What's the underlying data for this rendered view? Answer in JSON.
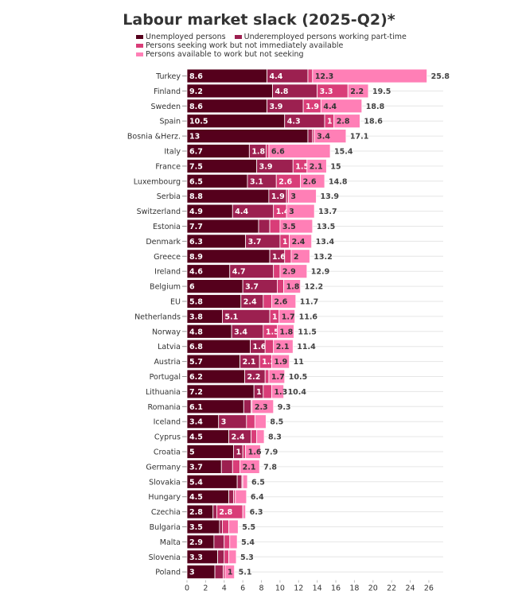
{
  "chart_data": {
    "type": "bar",
    "orientation": "horizontal",
    "stacked": true,
    "title": "Labour market slack (2025-Q2)*",
    "xlim": [
      0,
      27
    ],
    "xticks": [
      0,
      2,
      4,
      6,
      8,
      10,
      12,
      14,
      16,
      18,
      20,
      22,
      24,
      26
    ],
    "grid": true,
    "legend_position": "top-left",
    "categories": [
      "Turkey",
      "Finland",
      "Sweden",
      "Spain",
      "Bosnia &Herz.",
      "Italy",
      "France",
      "Luxembourg",
      "Serbia",
      "Switzerland",
      "Estonia",
      "Denmark",
      "Greece",
      "Ireland",
      "Belgium",
      "EU",
      "Netherlands",
      "Norway",
      "Latvia",
      "Austria",
      "Portugal",
      "Lithuania",
      "Romania",
      "Iceland",
      "Cyprus",
      "Croatia",
      "Germany",
      "Slovakia",
      "Hungary",
      "Czechia",
      "Bulgaria",
      "Malta",
      "Slovenia",
      "Poland"
    ],
    "totals": [
      "25.8",
      "19.5",
      "18.8",
      "18.6",
      "17.1",
      "15.4",
      "15",
      "14.8",
      "13.9",
      "13.7",
      "13.5",
      "13.4",
      "13.2",
      "12.9",
      "12.2",
      "11.7",
      "11.6",
      "11.5",
      "11.4",
      "11",
      "10.5",
      "10.4",
      "9.3",
      "8.5",
      "8.3",
      "7.9",
      "7.8",
      "6.5",
      "6.4",
      "6.3",
      "5.5",
      "5.4",
      "5.3",
      "5.1"
    ],
    "series": [
      {
        "name": "Unemployed persons",
        "color": "#55001c",
        "values": [
          8.6,
          9.2,
          8.6,
          10.5,
          13,
          6.7,
          7.5,
          6.5,
          8.8,
          4.9,
          7.7,
          6.3,
          8.9,
          4.6,
          6,
          5.8,
          3.8,
          4.8,
          6.8,
          5.7,
          6.2,
          7.2,
          6.1,
          3.4,
          4.5,
          5,
          3.7,
          5.4,
          4.5,
          2.8,
          3.5,
          2.9,
          3.3,
          3
        ],
        "labels": [
          "8.6",
          "9.2",
          "8.6",
          "10.5",
          "13",
          "6.7",
          "7.5",
          "6.5",
          "8.8",
          "4.9",
          "7.7",
          "6.3",
          "8.9",
          "4.6",
          "6",
          "5.8",
          "3.8",
          "4.8",
          "6.8",
          "5.7",
          "6.2",
          "7.2",
          "6.1",
          "3.4",
          "4.5",
          "5",
          "3.7",
          "5.4",
          "4.5",
          "2.8",
          "3.5",
          "2.9",
          "3.3",
          "3"
        ]
      },
      {
        "name": "Underemployed persons working part-time",
        "color": "#9c2050",
        "values": [
          4.4,
          4.8,
          3.9,
          4.3,
          0.5,
          1.8,
          3.9,
          3.1,
          1.9,
          4.4,
          1.2,
          3.7,
          1.6,
          4.7,
          3.7,
          2.4,
          5.1,
          3.4,
          1.6,
          2.1,
          2.2,
          1,
          0.8,
          3,
          2.4,
          1,
          1.2,
          0.5,
          0.5,
          0.4,
          0.3,
          1.1,
          0.7,
          0.9
        ],
        "labels": [
          "4.4",
          "4.8",
          "3.9",
          "4.3",
          "",
          "1.8",
          "3.9",
          "3.1",
          "1.9",
          "4.4",
          "",
          "3.7",
          "1.6",
          "4.7",
          "3.7",
          "2.4",
          "5.1",
          "3.4",
          "1.6",
          "2.1",
          "2.2",
          "1",
          "",
          "3",
          "2.4",
          "1",
          "",
          "",
          "",
          "",
          "",
          "",
          "",
          ""
        ]
      },
      {
        "name": "Persons seeking work but not immediately available",
        "color": "#d93d78",
        "values": [
          0.5,
          3.3,
          1.9,
          1,
          0.2,
          0.3,
          1.5,
          2.6,
          0.2,
          1.4,
          1.1,
          1,
          0.7,
          0.7,
          0.7,
          0.9,
          1,
          1.5,
          0.9,
          1.3,
          0.4,
          0.9,
          0.1,
          0.9,
          0.6,
          0.3,
          0.8,
          0.1,
          0.2,
          2.8,
          0.7,
          0.6,
          0.5,
          0.2
        ],
        "labels": [
          "",
          "3.3",
          "1.9",
          "1",
          "",
          "",
          "1.5",
          "2.6",
          "",
          "1.4",
          "",
          "1",
          "",
          "",
          "",
          "",
          "1",
          "1.5",
          "",
          "1.3",
          "",
          "",
          "",
          "",
          "",
          "",
          "",
          "",
          "",
          "2.8",
          "",
          "",
          "",
          ""
        ]
      },
      {
        "name": "Persons available to work but not seeking",
        "color": "#ff7fb6",
        "values": [
          12.3,
          2.2,
          4.4,
          2.8,
          3.4,
          6.6,
          2.1,
          2.6,
          3,
          3,
          3.5,
          2.4,
          2,
          2.9,
          1.8,
          2.6,
          1.7,
          1.8,
          2.1,
          1.9,
          1.7,
          1.3,
          2.3,
          1.2,
          0.8,
          1.6,
          2.1,
          0.5,
          1.2,
          0.3,
          1,
          0.8,
          0.8,
          1
        ],
        "labels": [
          "12.3",
          "2.2",
          "4.4",
          "2.8",
          "3.4",
          "6.6",
          "2.1",
          "2.6",
          "3",
          "3",
          "3.5",
          "2.4",
          "2",
          "2.9",
          "1.8",
          "2.6",
          "1.7",
          "1.8",
          "2.1",
          "1.9",
          "1.7",
          "1.3",
          "2.3",
          "",
          "",
          "1.6",
          "2.1",
          "",
          "",
          "",
          "",
          "",
          "",
          "1"
        ]
      }
    ]
  }
}
